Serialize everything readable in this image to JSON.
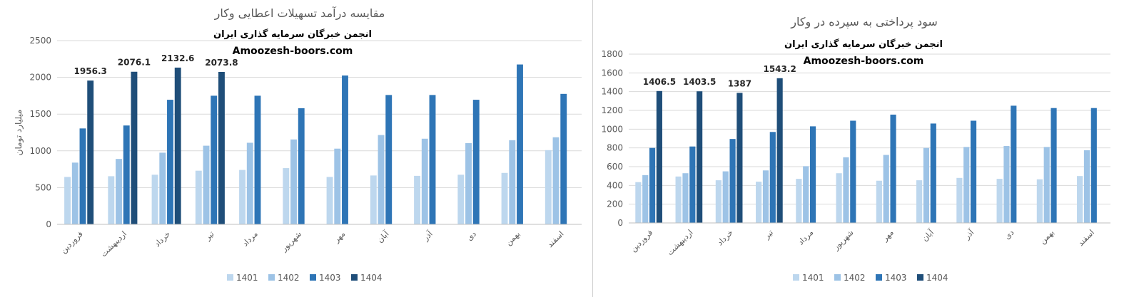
{
  "chart_data": [
    {
      "type": "bar",
      "title": "مقایسه درآمد تسهیلات اعطایی وکار",
      "subtitle": "انجمن خبرگان سرمایه گذاری ایران",
      "watermark": "Amoozesh-boors.com",
      "ylabel": "میلیارد تومان",
      "ylim": [
        0,
        2500
      ],
      "yticks": [
        "0",
        "500",
        "1000",
        "1500",
        "2000",
        "2500"
      ],
      "grid": true,
      "legend": "bottom",
      "categories": [
        "فروردین",
        "اردیبهشت",
        "خرداد",
        "تیر",
        "مرداد",
        "شهریور",
        "مهر",
        "آبان",
        "آذر",
        "دی",
        "بهمن",
        "اسفند"
      ],
      "series": [
        {
          "name": "1401",
          "color": "#bdd7ee",
          "values": [
            645,
            655,
            675,
            730,
            740,
            765,
            645,
            665,
            660,
            675,
            700,
            1010
          ]
        },
        {
          "name": "1402",
          "color": "#9dc3e6",
          "values": [
            840,
            890,
            975,
            1070,
            1110,
            1155,
            1030,
            1215,
            1165,
            1105,
            1145,
            1185
          ]
        },
        {
          "name": "1403",
          "color": "#2e75b6",
          "values": [
            1305,
            1345,
            1695,
            1750,
            1750,
            1580,
            2025,
            1760,
            1760,
            1695,
            2175,
            1775
          ]
        },
        {
          "name": "1404",
          "color": "#1f4e79",
          "values": [
            1956.3,
            2076.1,
            2132.6,
            2073.8,
            null,
            null,
            null,
            null,
            null,
            null,
            null,
            null
          ]
        }
      ],
      "data_labels": [
        "1956.3",
        "2076.1",
        "2132.6",
        "2073.8"
      ]
    },
    {
      "type": "bar",
      "title": "سود پرداختی به سپرده در وکار",
      "subtitle": "انجمن خبرگان سرمایه گذاری ایران",
      "watermark": "Amoozesh-boors.com",
      "ylabel": "",
      "ylim": [
        0,
        1800
      ],
      "yticks": [
        "0",
        "200",
        "400",
        "600",
        "800",
        "1000",
        "1200",
        "1400",
        "1600",
        "1800"
      ],
      "grid": true,
      "legend": "bottom",
      "categories": [
        "فروردین",
        "اردیبهشت",
        "خرداد",
        "تیر",
        "مرداد",
        "شهریور",
        "مهر",
        "آبان",
        "آذر",
        "دی",
        "بهمن",
        "اسفند"
      ],
      "series": [
        {
          "name": "1401",
          "color": "#bdd7ee",
          "values": [
            435,
            495,
            455,
            440,
            470,
            530,
            450,
            455,
            480,
            470,
            465,
            500
          ]
        },
        {
          "name": "1402",
          "color": "#9dc3e6",
          "values": [
            510,
            530,
            550,
            560,
            605,
            700,
            725,
            800,
            810,
            820,
            810,
            775
          ]
        },
        {
          "name": "1403",
          "color": "#2e75b6",
          "values": [
            800,
            815,
            895,
            970,
            1030,
            1090,
            1155,
            1060,
            1090,
            1250,
            1225,
            1225
          ]
        },
        {
          "name": "1404",
          "color": "#1f4e79",
          "values": [
            1406.5,
            1403.5,
            1387,
            1543.2,
            null,
            null,
            null,
            null,
            null,
            null,
            null,
            null
          ]
        }
      ],
      "data_labels": [
        "1406.5",
        "1403.5",
        "1387",
        "1543.2"
      ]
    }
  ]
}
